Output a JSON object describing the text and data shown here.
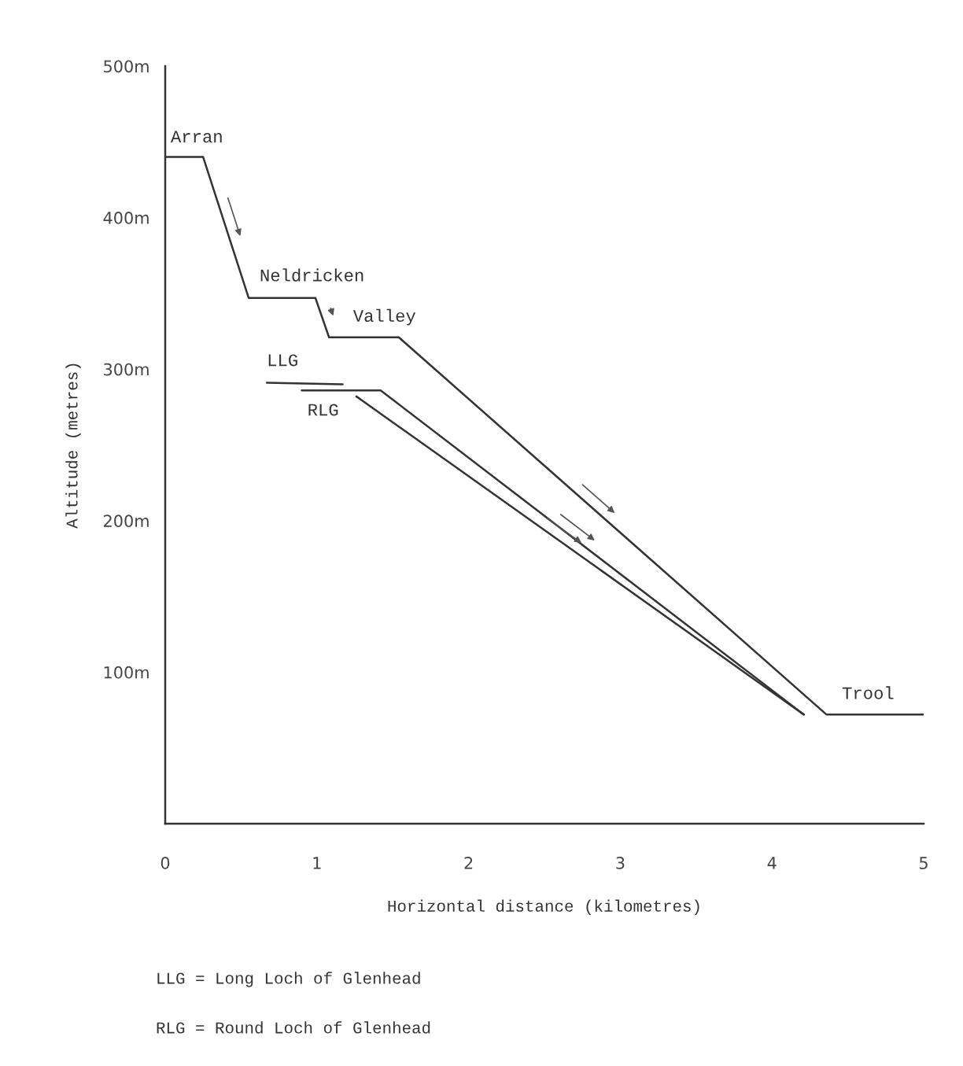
{
  "chart_data": {
    "type": "line",
    "xlabel": "Horizontal distance (kilometres)",
    "ylabel": "Altitude (metres)",
    "xlim": [
      0,
      5
    ],
    "xticks": [
      0,
      1,
      2,
      3,
      4,
      5
    ],
    "ylim": [
      0,
      500
    ],
    "yticks": [
      {
        "value": 100,
        "label": "100m"
      },
      {
        "value": 200,
        "label": "200m"
      },
      {
        "value": 300,
        "label": "300m"
      },
      {
        "value": 400,
        "label": "400m"
      },
      {
        "value": 500,
        "label": "500m"
      }
    ],
    "series": [
      {
        "color": "#333333",
        "x": [
          0,
          0.25,
          0.55,
          0.99,
          1.08,
          1.54,
          4.36,
          5
        ],
        "values": [
          440,
          440,
          347,
          347,
          321,
          321,
          72,
          72
        ]
      },
      {
        "color": "#333333",
        "x": [
          0.67,
          1.17
        ],
        "values": [
          291,
          290
        ]
      },
      {
        "color": "#333333",
        "x": [
          0.9,
          1.42,
          4.21
        ],
        "values": [
          286,
          286,
          72
        ]
      },
      {
        "color": "#333333",
        "x": [
          1.26,
          4.21
        ],
        "values": [
          282,
          72
        ]
      }
    ],
    "annotations": [
      {
        "text": "Arran",
        "x": 0,
        "y": 440
      },
      {
        "text": "Neldricken",
        "x": 0.55,
        "y": 347
      },
      {
        "text": "Valley",
        "x": 1.08,
        "y": 321
      },
      {
        "text": "LLG",
        "x": 0.67,
        "y": 291
      },
      {
        "text": "RLG",
        "x": 1.26,
        "y": 282
      },
      {
        "text": "Trool",
        "x": 4.36,
        "y": 72
      },
      "LLG = Long Loch of Glenhead",
      "RLG = Round Loch of Glenhead"
    ],
    "grid": false,
    "legend": false,
    "marker": "none",
    "line_style": "solid"
  }
}
